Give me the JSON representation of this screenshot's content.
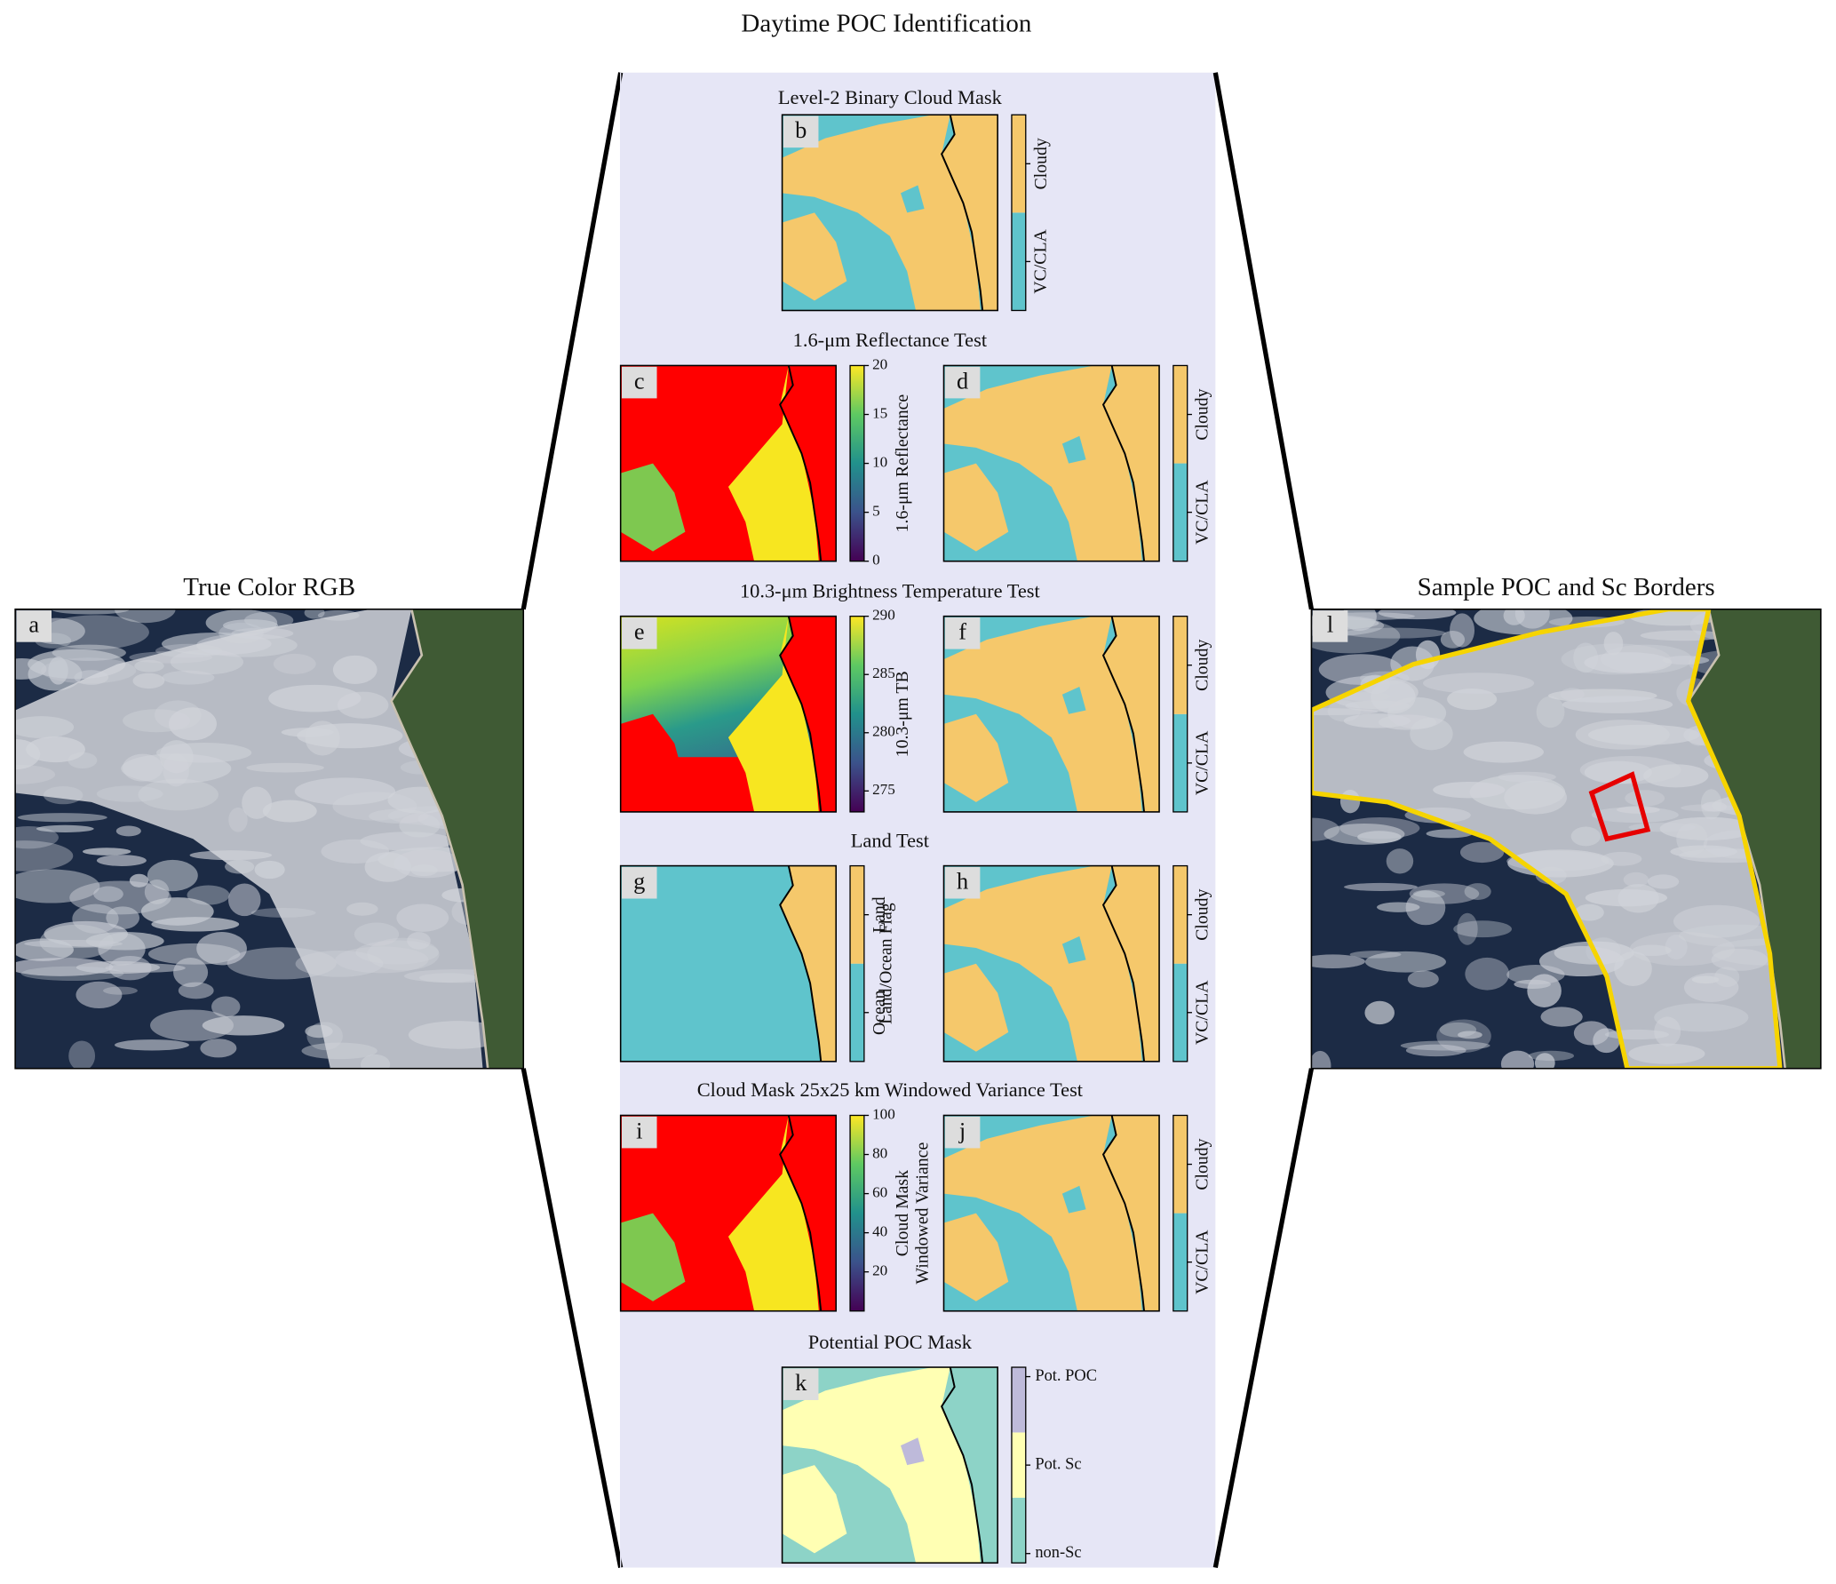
{
  "title": "Daytime POC Identification",
  "side_panels": [
    {
      "letter": "a",
      "title": "True Color RGB"
    },
    {
      "letter": "l",
      "title": "Sample POC and Sc Borders"
    }
  ],
  "rows": [
    {
      "title": "Level-2 Binary Cloud Mask",
      "panels": [
        {
          "letter": "b",
          "colorbar": {
            "categories": [
              "VC/CLA",
              "Cloudy"
            ]
          }
        }
      ]
    },
    {
      "title": "1.6-μm Reflectance Test",
      "panels": [
        {
          "letter": "c",
          "colorbar": {
            "label": [
              "1.6-μm Reflectance"
            ],
            "lim": [
              0,
              20
            ],
            "ticks": [
              0,
              5,
              10,
              15,
              20
            ]
          }
        },
        {
          "letter": "d",
          "colorbar": {
            "categories": [
              "VC/CLA",
              "Cloudy"
            ]
          }
        }
      ]
    },
    {
      "title": "10.3-μm Brightness Temperature Test",
      "panels": [
        {
          "letter": "e",
          "colorbar": {
            "label": [
              "10.3-μm TB"
            ],
            "lim": [
              273.2,
              290
            ],
            "ticks": [
              275,
              280,
              285,
              290
            ]
          }
        },
        {
          "letter": "f",
          "colorbar": {
            "categories": [
              "VC/CLA",
              "Cloudy"
            ]
          }
        }
      ]
    },
    {
      "title": "Land Test",
      "panels": [
        {
          "letter": "g",
          "colorbar": {
            "label": [
              "Land/Ocean Flag"
            ],
            "categories": [
              "Ocean",
              "Land"
            ]
          }
        },
        {
          "letter": "h",
          "colorbar": {
            "categories": [
              "VC/CLA",
              "Cloudy"
            ]
          }
        }
      ]
    },
    {
      "title": "Cloud Mask 25x25 km Windowed Variance Test",
      "panels": [
        {
          "letter": "i",
          "colorbar": {
            "label": [
              "Cloud Mask",
              "Windowed Variance"
            ],
            "lim": [
              0,
              100
            ],
            "ticks": [
              20,
              40,
              60,
              80,
              100
            ]
          }
        },
        {
          "letter": "j",
          "colorbar": {
            "categories": [
              "VC/CLA",
              "Cloudy"
            ]
          }
        }
      ]
    },
    {
      "title": "Potential POC Mask",
      "panels": [
        {
          "letter": "k",
          "colorbar": {
            "categories": [
              "non-Sc",
              "Pot. Sc",
              "Pot. POC"
            ]
          }
        }
      ]
    }
  ]
}
